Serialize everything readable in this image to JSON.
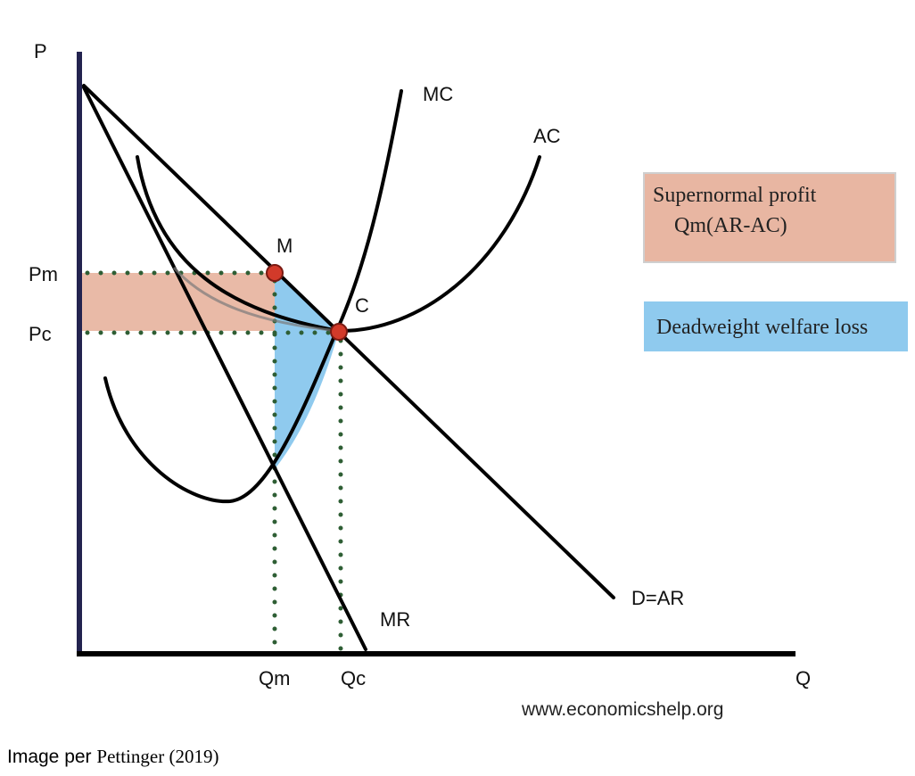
{
  "diagram": {
    "axes": {
      "y_label": "P",
      "x_label": "Q"
    },
    "price_labels": {
      "pm": "Pm",
      "pc": "Pc"
    },
    "quantity_labels": {
      "qm": "Qm",
      "qc": "Qc"
    },
    "curves": {
      "mc": "MC",
      "ac": "AC",
      "demand": "D=AR",
      "mr": "MR"
    },
    "points": {
      "m": "M",
      "c": "C"
    },
    "legend": {
      "profit_line1": "Supernormal profit",
      "profit_line2": "Qm(AR-AC)",
      "deadweight": "Deadweight welfare loss"
    },
    "colors": {
      "profit_fill": "#e8b6a2",
      "deadweight_fill": "#8fcaee",
      "point_fill": "#d23a2a",
      "guide_dots": "#2e5e34",
      "y_axis": "#23234f"
    },
    "source": "www.economicshelp.org"
  },
  "caption": {
    "prefix": "Image per ",
    "citation": "Pettinger (2019)"
  }
}
